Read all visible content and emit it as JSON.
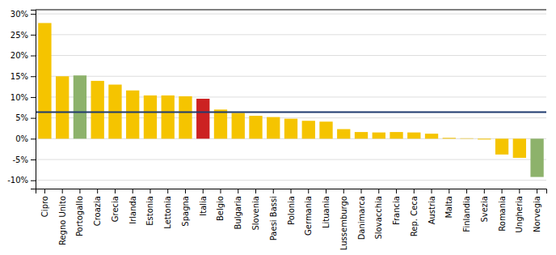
{
  "chart_data": {
    "type": "bar",
    "categories": [
      "Cipro",
      "Regno Unito",
      "Portogallo",
      "Croazia",
      "Grecia",
      "Irlanda",
      "Estonia",
      "Lettonia",
      "Spagna",
      "Italia",
      "Belgio",
      "Bulgaria",
      "Slovenia",
      "Paesi Bassi",
      "Polonia",
      "Germania",
      "Lituania",
      "Lussemburgo",
      "Danimarca",
      "Slovacchia",
      "Francia",
      "Rep. Ceca",
      "Austria",
      "Malta",
      "Finlandia",
      "Svezia",
      "Romania",
      "Ungheria",
      "Norvegia"
    ],
    "values": [
      27.8,
      15.0,
      15.2,
      13.9,
      13.0,
      11.6,
      10.4,
      10.4,
      10.2,
      9.6,
      7.0,
      6.2,
      5.5,
      5.2,
      4.8,
      4.3,
      4.1,
      2.3,
      1.6,
      1.5,
      1.6,
      1.5,
      1.2,
      0.2,
      0.1,
      -0.2,
      -3.8,
      -4.6,
      -9.2
    ],
    "colors": [
      "#F5C400",
      "#F5C400",
      "#8DB26B",
      "#F5C400",
      "#F5C400",
      "#F5C400",
      "#F5C400",
      "#F5C400",
      "#F5C400",
      "#CC2222",
      "#F5C400",
      "#F5C400",
      "#F5C400",
      "#F5C400",
      "#F5C400",
      "#F5C400",
      "#F5C400",
      "#F5C400",
      "#F5C400",
      "#F5C400",
      "#F5C400",
      "#F5C400",
      "#F5C400",
      "#F5C400",
      "#F5C400",
      "#F5C400",
      "#F5C400",
      "#F5C400",
      "#8DB26B"
    ],
    "reference_line": {
      "value": 6.4,
      "color": "#1F3A6E"
    },
    "ylim": [
      -12,
      31
    ],
    "yticks": [
      {
        "value": -10,
        "label": "-10%"
      },
      {
        "value": -5,
        "label": "-5%"
      },
      {
        "value": 0,
        "label": "0%"
      },
      {
        "value": 5,
        "label": "5%"
      },
      {
        "value": 10,
        "label": "10%"
      },
      {
        "value": 15,
        "label": "15%"
      },
      {
        "value": 20,
        "label": "20%"
      },
      {
        "value": 25,
        "label": "25%"
      },
      {
        "value": 30,
        "label": "30%"
      }
    ],
    "grid": true
  }
}
